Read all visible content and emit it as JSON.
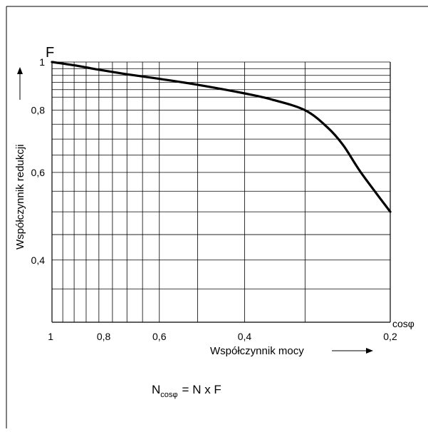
{
  "chart_data": {
    "type": "line",
    "y_symbol": "F",
    "ylabel": "Współczynnik redukcji",
    "xlabel": "Współczynnik mocy",
    "x_symbol": "cosφ",
    "x_ticks": [
      {
        "value": 1,
        "label": "1"
      },
      {
        "value": 0.8,
        "label": "0,8"
      },
      {
        "value": 0.6,
        "label": "0,6"
      },
      {
        "value": 0.4,
        "label": "0,4"
      },
      {
        "value": 0.2,
        "label": "0,2"
      }
    ],
    "y_ticks": [
      {
        "value": 1,
        "label": "1"
      },
      {
        "value": 0.8,
        "label": "0,8"
      },
      {
        "value": 0.6,
        "label": "0,6"
      },
      {
        "value": 0.4,
        "label": "0,4"
      }
    ],
    "x_gridlines": [
      1,
      0.95,
      0.9,
      0.85,
      0.8,
      0.75,
      0.7,
      0.65,
      0.6,
      0.5,
      0.4,
      0.3,
      0.2
    ],
    "y_gridlines": [
      1,
      0.97,
      0.94,
      0.91,
      0.88,
      0.85,
      0.8,
      0.75,
      0.7,
      0.65,
      0.6,
      0.55,
      0.5,
      0.45,
      0.4,
      0.35
    ],
    "xlim": [
      1,
      0.2
    ],
    "ylim": [
      1,
      0.3
    ],
    "series": [
      {
        "x": [
          1,
          0.9,
          0.8,
          0.7,
          0.6,
          0.5,
          0.4,
          0.35,
          0.3,
          0.27,
          0.25,
          0.23,
          0.2
        ],
        "values": [
          1,
          0.985,
          0.965,
          0.945,
          0.925,
          0.9,
          0.865,
          0.84,
          0.8,
          0.74,
          0.68,
          0.6,
          0.5
        ]
      }
    ],
    "formula": {
      "lhs": "N",
      "lhs_sub": "cosφ",
      "rhs": "= N x F"
    }
  }
}
